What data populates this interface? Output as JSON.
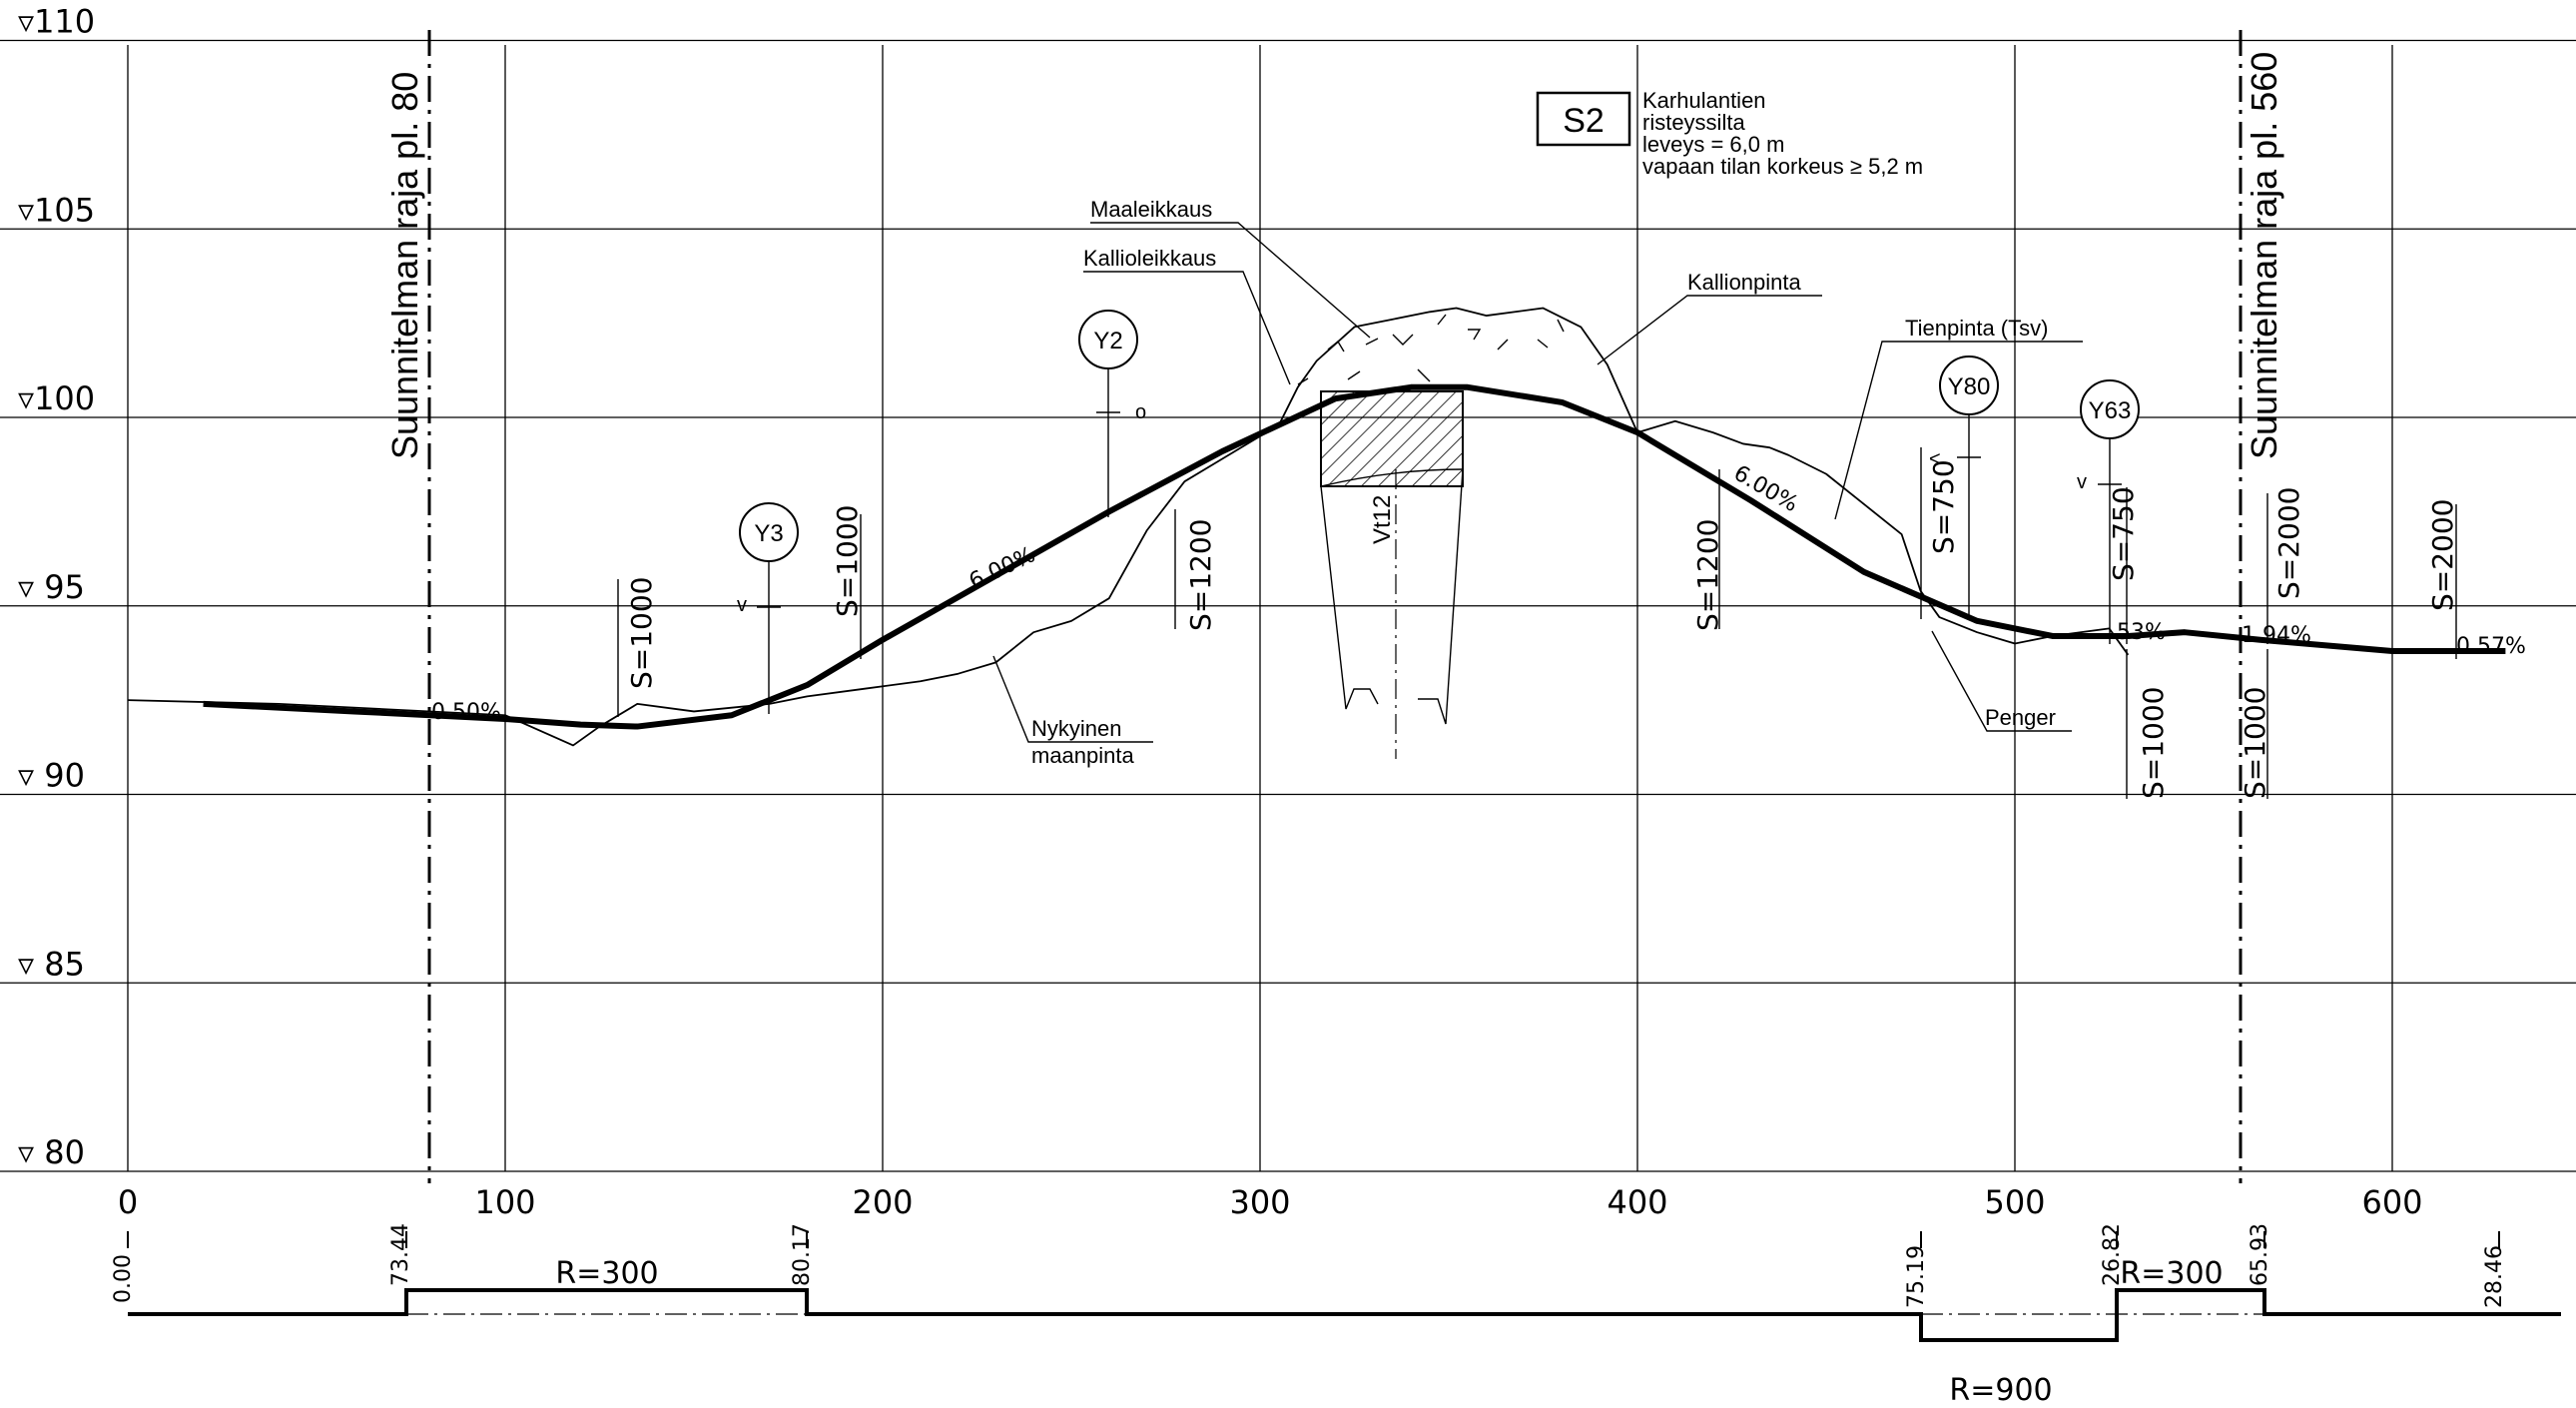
{
  "elevation_labels": [
    "▿110",
    "▿105",
    "▿100",
    "▿ 95",
    "▿ 90",
    "▿ 85",
    "▿ 80"
  ],
  "elevation_values": [
    110,
    105,
    100,
    95,
    90,
    85,
    80
  ],
  "station_labels": [
    "0",
    "100",
    "200",
    "300",
    "400",
    "500",
    "600"
  ],
  "station_values": [
    0,
    100,
    200,
    300,
    400,
    500,
    600
  ],
  "plan_limits": [
    {
      "station": 80,
      "label": "Suunnitelman raja pl. 80"
    },
    {
      "station": 560,
      "label": "Suunnitelman raja pl. 560"
    }
  ],
  "bridge": {
    "code": "S2",
    "lines": [
      "Karhulantien",
      "risteyssilta",
      "leveys = 6,0 m",
      "vapaan tilan korkeus ≥ 5,2 m"
    ]
  },
  "callouts": {
    "maaleikkaus": "Maaleikkaus",
    "kallioleikkaus": "Kallioleikkaus",
    "kallionpinta": "Kallionpinta",
    "tienpinta": "Tienpinta (Tsv)",
    "nykyinen_1": "Nykyinen",
    "nykyinen_2": "maanpinta",
    "penger": "Penger"
  },
  "underpass_road": "Vt12",
  "vertices": [
    {
      "label": "Y3",
      "station": 170
    },
    {
      "label": "Y2",
      "station": 260
    },
    {
      "label": "Y80",
      "station": 488
    },
    {
      "label": "Y63",
      "station": 527
    }
  ],
  "vertex_marks": {
    "y3": "v",
    "y2": "o",
    "y80": "<",
    "y63": "v"
  },
  "curve_labels": {
    "s1000_a": "S=1000",
    "s1000_b": "S=1000",
    "s1200_a": "S=1200",
    "s1200_b": "S=1200",
    "s750_a": "S=750",
    "s750_b": "S=750",
    "s2000_a": "S=2000",
    "s2000_b": "S=2000",
    "s1000_c": "S=1000",
    "s1000_d": "S=1000"
  },
  "grade_labels": {
    "g050": "0.50%",
    "g600a": "6.00%",
    "g600b": "6.00%",
    "g53": "53%",
    "g194": "1.94%",
    "g057": "0.57%"
  },
  "alignment": {
    "stations": [
      "0.00",
      "73.44",
      "80.17",
      "75.19",
      "26.82",
      "65.93",
      "28.46"
    ],
    "radii": [
      "R=300",
      "R=900",
      "R=300"
    ]
  },
  "chart_data": {
    "type": "line",
    "xlabel": "",
    "ylabel": "",
    "xlim": [
      0,
      650
    ],
    "ylim": [
      80,
      110
    ],
    "series": [
      {
        "x": [
          20,
          60,
          100,
          120,
          135,
          160,
          180,
          200,
          230,
          260,
          290,
          320,
          340,
          355,
          380,
          400,
          430,
          460,
          490,
          510,
          530,
          545,
          565,
          600,
          630
        ],
        "y": [
          92.4,
          92.2,
          92.0,
          91.85,
          91.8,
          92.1,
          92.9,
          94.1,
          95.8,
          97.5,
          99.1,
          100.5,
          100.8,
          100.8,
          100.4,
          99.6,
          97.8,
          95.9,
          94.6,
          94.2,
          94.2,
          94.3,
          94.1,
          93.8,
          93.8
        ]
      },
      {
        "x": [
          0,
          40,
          100,
          118,
          125,
          135,
          150,
          170,
          180,
          195,
          210,
          220,
          230,
          240,
          250,
          260,
          270,
          280,
          290,
          305,
          310,
          315,
          325,
          335,
          345,
          352,
          360,
          375,
          385,
          392,
          400,
          410,
          420,
          428,
          435,
          440,
          450,
          460,
          470,
          475,
          480,
          490,
          500,
          510,
          525,
          530
        ],
        "y": [
          92.5,
          92.4,
          92.1,
          91.3,
          91.8,
          92.4,
          92.2,
          92.4,
          92.6,
          92.8,
          93.0,
          93.2,
          93.5,
          94.3,
          94.6,
          95.2,
          97.0,
          98.3,
          98.9,
          99.8,
          100.8,
          101.5,
          102.4,
          102.6,
          102.8,
          102.9,
          102.7,
          102.9,
          102.4,
          101.4,
          99.6,
          99.9,
          99.6,
          99.3,
          99.2,
          99.0,
          98.5,
          97.7,
          96.9,
          95.4,
          94.7,
          94.3,
          94.0,
          94.2,
          94.4,
          93.7
        ]
      }
    ]
  }
}
